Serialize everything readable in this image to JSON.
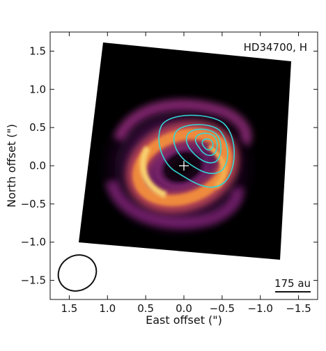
{
  "figure": {
    "object_label": "HD34700, H",
    "scale_bar_label": "175 au",
    "xlabel": "East offset (\")",
    "ylabel": "North offset (\")",
    "x_ticks": [
      {
        "value": 1.5,
        "label": "1.5"
      },
      {
        "value": 1.0,
        "label": "1.0"
      },
      {
        "value": 0.5,
        "label": "0.5"
      },
      {
        "value": 0.0,
        "label": "0.0"
      },
      {
        "value": -0.5,
        "label": "−0.5"
      },
      {
        "value": -1.0,
        "label": "−1.0"
      },
      {
        "value": -1.5,
        "label": "−1.5"
      }
    ],
    "y_ticks": [
      {
        "value": 1.5,
        "label": "1.5"
      },
      {
        "value": 1.0,
        "label": "1.0"
      },
      {
        "value": 0.5,
        "label": "0.5"
      },
      {
        "value": 0.0,
        "label": "0.0"
      },
      {
        "value": -0.5,
        "label": "−0.5"
      },
      {
        "value": -1.0,
        "label": "−1.0"
      },
      {
        "value": -1.5,
        "label": "−1.5"
      }
    ],
    "xlim": [
      1.75,
      -1.75
    ],
    "ylim": [
      -1.75,
      1.75
    ],
    "colors": {
      "background_map": "#000000",
      "contour": "#33d6d6",
      "ring_bright": "#f7c25a",
      "ring_mid": "#e8803a",
      "halo": "#8a2a84",
      "star_marker": "#ffffff"
    }
  }
}
